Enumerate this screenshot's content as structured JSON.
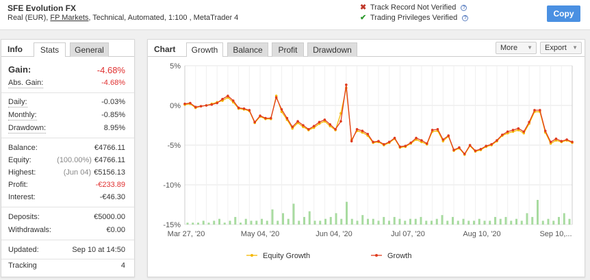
{
  "header": {
    "title": "SFE Evolution FX",
    "subtitle_pre": "Real (EUR),",
    "subtitle_link": "FP Markets",
    "subtitle_post": ", Technical, Automated, 1:100 , MetaTrader 4",
    "verify_track": "Track Record Not Verified",
    "verify_privileges": "Trading Privileges Verified",
    "copy_label": "Copy"
  },
  "left_tabs": {
    "info": "Info",
    "stats": "Stats",
    "general": "General"
  },
  "stats": {
    "gain_label": "Gain:",
    "gain_value": "-4.68%",
    "abs_gain_label": "Abs. Gain:",
    "abs_gain_value": "-4.68%",
    "daily_label": "Daily:",
    "daily_value": "-0.03%",
    "monthly_label": "Monthly:",
    "monthly_value": "-0.85%",
    "drawdown_label": "Drawdown:",
    "drawdown_value": "8.95%",
    "balance_label": "Balance:",
    "balance_value": "€4766.11",
    "equity_label": "Equity:",
    "equity_sub": "(100.00%)",
    "equity_value": "€4766.11",
    "highest_label": "Highest:",
    "highest_sub": "(Jun 04)",
    "highest_value": "€5156.13",
    "profit_label": "Profit:",
    "profit_value": "-€233.89",
    "interest_label": "Interest:",
    "interest_value": "-€46.30",
    "deposits_label": "Deposits:",
    "deposits_value": "€5000.00",
    "withdrawals_label": "Withdrawals:",
    "withdrawals_value": "€0.00",
    "updated_label": "Updated:",
    "updated_value": "Sep 10 at 14:50",
    "tracking_label": "Tracking",
    "tracking_value": "4"
  },
  "chart_tabs": {
    "chart": "Chart",
    "growth": "Growth",
    "balance": "Balance",
    "profit": "Profit",
    "drawdown": "Drawdown",
    "more": "More",
    "export": "Export"
  },
  "colors": {
    "equity": "#f5b800",
    "growth": "#e03c1e",
    "volume": "#a8dba0",
    "copy_button": "#4a90e2",
    "negative": "#e03030"
  },
  "chart_data": {
    "type": "line",
    "y_ticks": [
      "5%",
      "0%",
      "-5%",
      "-10%",
      "-15%"
    ],
    "ylim": [
      -15,
      5
    ],
    "x_ticks": [
      "Mar 27, '20",
      "May 04, '20",
      "Jun 04, '20",
      "Jul 07, '20",
      "Aug 10, '20",
      "Sep 10,..."
    ],
    "legend": [
      "Equity Growth",
      "Growth"
    ],
    "growth": [
      0.2,
      0.3,
      -0.2,
      -0.1,
      0,
      0.1,
      0.3,
      0.8,
      1.2,
      0.6,
      -0.3,
      -0.4,
      -0.6,
      -2.1,
      -1.3,
      -1.6,
      -1.6,
      1.0,
      -0.5,
      -1.6,
      -2.7,
      -2.0,
      -2.5,
      -3.0,
      -2.6,
      -2.1,
      -1.8,
      -2.4,
      -3.0,
      -2.0,
      2.6,
      -4.5,
      -3.0,
      -3.2,
      -3.6,
      -4.6,
      -4.5,
      -4.9,
      -4.6,
      -4.1,
      -5.2,
      -5.1,
      -4.7,
      -4.1,
      -4.4,
      -4.8,
      -3.1,
      -3.0,
      -4.3,
      -3.8,
      -5.6,
      -5.3,
      -6.1,
      -5.0,
      -5.7,
      -5.5,
      -5.1,
      -4.9,
      -4.4,
      -3.7,
      -3.3,
      -3.1,
      -2.9,
      -3.3,
      -2.1,
      -0.6,
      -0.6,
      -3.2,
      -4.6,
      -4.2,
      -4.5,
      -4.3,
      -4.6
    ],
    "equity": [
      0.1,
      0.2,
      -0.3,
      -0.1,
      0,
      0.2,
      0.4,
      0.6,
      1.0,
      0.4,
      -0.4,
      -0.5,
      -0.7,
      -2.2,
      -1.4,
      -1.7,
      -1.7,
      1.2,
      -0.8,
      -1.8,
      -2.9,
      -2.2,
      -2.7,
      -3.1,
      -2.8,
      -2.3,
      -2.0,
      -2.6,
      -3.1,
      -1.0,
      2.2,
      -4.3,
      -3.2,
      -3.4,
      -3.8,
      -4.7,
      -4.6,
      -5.0,
      -4.7,
      -4.2,
      -5.3,
      -5.2,
      -4.8,
      -4.3,
      -4.6,
      -4.9,
      -3.3,
      -3.2,
      -4.5,
      -3.9,
      -5.7,
      -5.4,
      -6.2,
      -5.1,
      -5.8,
      -5.6,
      -5.2,
      -5.0,
      -4.5,
      -3.8,
      -3.5,
      -3.3,
      -3.1,
      -3.5,
      -2.3,
      -0.8,
      -0.8,
      -3.4,
      -4.8,
      -4.4,
      -4.6,
      -4.4,
      -4.7
    ],
    "volumes": [
      1,
      1,
      1,
      2,
      1,
      2,
      3,
      1,
      2,
      4,
      1,
      3,
      2,
      2,
      3,
      2,
      8,
      2,
      6,
      3,
      11,
      2,
      4,
      7,
      2,
      2,
      3,
      4,
      6,
      3,
      12,
      3,
      2,
      5,
      3,
      3,
      2,
      4,
      2,
      4,
      3,
      2,
      3,
      3,
      4,
      2,
      2,
      3,
      5,
      2,
      4,
      2,
      3,
      2,
      2,
      3,
      2,
      2,
      4,
      3,
      4,
      2,
      3,
      2,
      6,
      4,
      13,
      2,
      3,
      2,
      4,
      6,
      3
    ]
  }
}
